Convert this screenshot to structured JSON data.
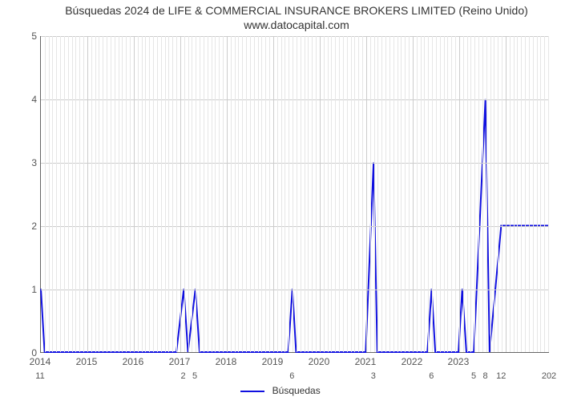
{
  "chart": {
    "type": "line",
    "title": "Búsquedas 2024 de LIFE & COMMERCIAL INSURANCE BROKERS LIMITED (Reino Unido) www.datocapital.com",
    "title_fontsize": 14,
    "title_color": "#333333",
    "background_color": "#ffffff",
    "grid_color": "#cccccc",
    "axis_color": "#666666",
    "tick_color": "#555555",
    "tick_fontsize": 12,
    "line_color": "#1010e0",
    "line_width": 2,
    "ylim": [
      0,
      5
    ],
    "ytick_step": 1,
    "yticks": [
      0,
      1,
      2,
      3,
      4,
      5
    ],
    "xlim": [
      2014,
      2024.95
    ],
    "xtick_years": [
      2014,
      2015,
      2016,
      2017,
      2018,
      2019,
      2020,
      2021,
      2022,
      2023
    ],
    "xtick_minor": [
      {
        "x": 2014.0,
        "label": "11"
      },
      {
        "x": 2017.08,
        "label": "2"
      },
      {
        "x": 2017.33,
        "label": "5"
      },
      {
        "x": 2019.42,
        "label": "6"
      },
      {
        "x": 2021.17,
        "label": "3"
      },
      {
        "x": 2022.42,
        "label": "6"
      },
      {
        "x": 2023.33,
        "label": "5"
      },
      {
        "x": 2023.58,
        "label": "8"
      },
      {
        "x": 2023.92,
        "label": "12"
      },
      {
        "x": 2024.95,
        "label": "202"
      }
    ],
    "legend_label": "Búsquedas",
    "series": [
      {
        "x": 2014.0,
        "y": 1
      },
      {
        "x": 2014.08,
        "y": 0
      },
      {
        "x": 2016.92,
        "y": 0
      },
      {
        "x": 2017.08,
        "y": 1
      },
      {
        "x": 2017.17,
        "y": 0
      },
      {
        "x": 2017.33,
        "y": 1
      },
      {
        "x": 2017.42,
        "y": 0
      },
      {
        "x": 2019.33,
        "y": 0
      },
      {
        "x": 2019.42,
        "y": 1
      },
      {
        "x": 2019.5,
        "y": 0
      },
      {
        "x": 2021.0,
        "y": 0
      },
      {
        "x": 2021.17,
        "y": 3
      },
      {
        "x": 2021.25,
        "y": 0
      },
      {
        "x": 2022.33,
        "y": 0
      },
      {
        "x": 2022.42,
        "y": 1
      },
      {
        "x": 2022.5,
        "y": 0
      },
      {
        "x": 2023.0,
        "y": 0
      },
      {
        "x": 2023.08,
        "y": 1
      },
      {
        "x": 2023.17,
        "y": 0
      },
      {
        "x": 2023.33,
        "y": 0
      },
      {
        "x": 2023.58,
        "y": 4
      },
      {
        "x": 2023.67,
        "y": 0
      },
      {
        "x": 2023.92,
        "y": 2
      },
      {
        "x": 2024.95,
        "y": 2
      }
    ]
  }
}
